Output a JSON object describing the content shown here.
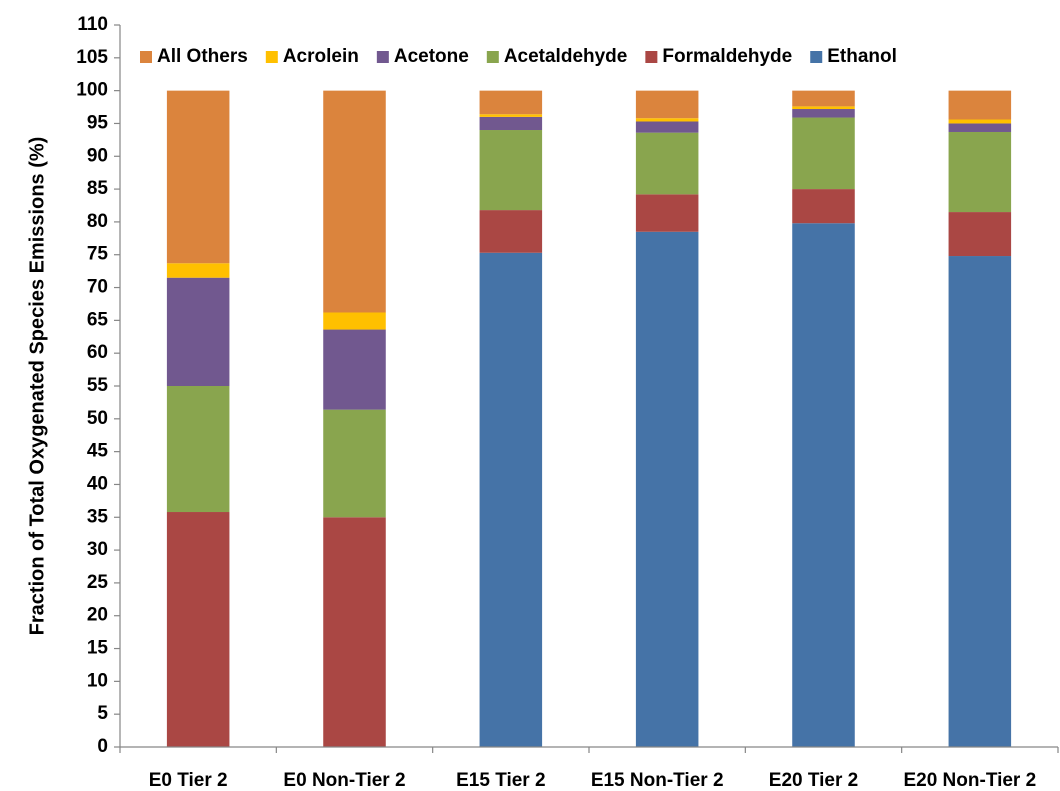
{
  "chart_data": {
    "type": "stacked_bar",
    "y_label": "Fraction of Total Oxygenated Species Emissions (%)",
    "categories": [
      "E0 Tier 2",
      "E0 Non-Tier 2",
      "E15 Tier 2",
      "E15 Non-Tier 2",
      "E20 Tier 2",
      "E20 Non-Tier 2"
    ],
    "series": [
      {
        "name": "Ethanol",
        "color": "#4573a7",
        "values": [
          0,
          0,
          75.3,
          78.5,
          79.8,
          74.8
        ]
      },
      {
        "name": "Formaldehyde",
        "color": "#aa4744",
        "values": [
          35.8,
          35,
          6.5,
          5.7,
          5.2,
          6.7
        ]
      },
      {
        "name": "Acetaldehyde",
        "color": "#89a54e",
        "values": [
          19.2,
          16.4,
          12.2,
          9.4,
          10.9,
          12.2
        ]
      },
      {
        "name": "Acetone",
        "color": "#71588f",
        "values": [
          16.5,
          12.2,
          2.0,
          1.7,
          1.3,
          1.3
        ]
      },
      {
        "name": "Acrolein",
        "color": "#ffc000",
        "values": [
          2.2,
          2.6,
          0.4,
          0.5,
          0.4,
          0.6
        ]
      },
      {
        "name": "All Others",
        "color": "#db843d",
        "values": [
          26.3,
          33.8,
          3.6,
          4.2,
          2.4,
          4.4
        ]
      }
    ],
    "ylim": [
      0,
      110
    ],
    "yticks": [
      0,
      5,
      10,
      15,
      20,
      25,
      30,
      35,
      40,
      45,
      50,
      55,
      60,
      65,
      70,
      75,
      80,
      85,
      90,
      95,
      100,
      105,
      110
    ],
    "legend": "top"
  }
}
